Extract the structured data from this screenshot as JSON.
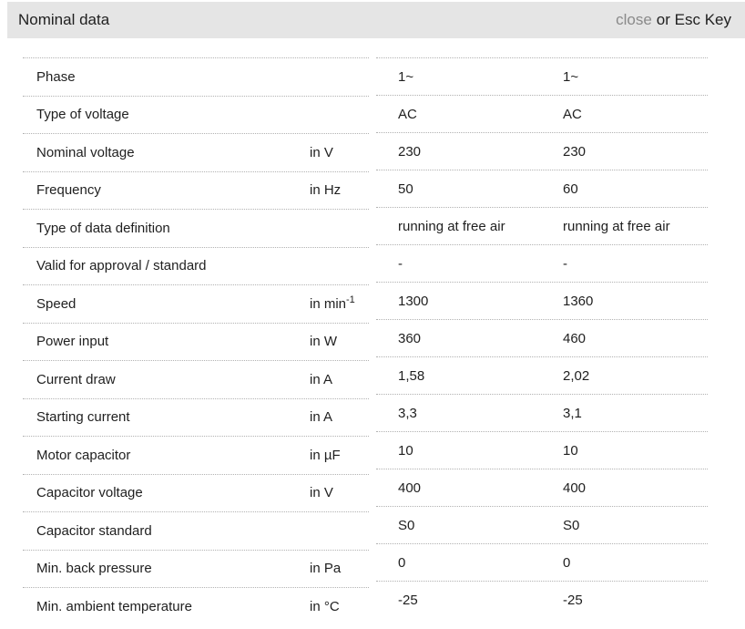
{
  "header": {
    "title": "Nominal data",
    "close_label": "close",
    "close_suffix": "or Esc Key"
  },
  "colors": {
    "header_bg": "#e5e5e5",
    "text": "#1f1f1f",
    "muted": "#8a8a8a",
    "border": "#b2b2b2"
  },
  "table": {
    "rows": [
      {
        "label": "Phase",
        "unit": "",
        "values": [
          "1~",
          "1~"
        ]
      },
      {
        "label": "Type of voltage",
        "unit": "",
        "values": [
          "AC",
          "AC"
        ]
      },
      {
        "label": "Nominal voltage",
        "unit": "in V",
        "values": [
          "230",
          "230"
        ]
      },
      {
        "label": "Frequency",
        "unit": "in Hz",
        "values": [
          "50",
          "60"
        ]
      },
      {
        "label": "Type of data definition",
        "unit": "",
        "values": [
          "running at free air",
          "running at free air"
        ]
      },
      {
        "label": "Valid for approval / standard",
        "unit": "",
        "values": [
          "-",
          "-"
        ]
      },
      {
        "label": "Speed",
        "unit": "in min",
        "unit_sup": "-1",
        "values": [
          "1300",
          "1360"
        ]
      },
      {
        "label": "Power input",
        "unit": "in W",
        "values": [
          "360",
          "460"
        ]
      },
      {
        "label": "Current draw",
        "unit": "in A",
        "values": [
          "1,58",
          "2,02"
        ]
      },
      {
        "label": "Starting current",
        "unit": "in A",
        "values": [
          "3,3",
          "3,1"
        ]
      },
      {
        "label": "Motor capacitor",
        "unit": "in µF",
        "values": [
          "10",
          "10"
        ]
      },
      {
        "label": "Capacitor voltage",
        "unit": "in V",
        "values": [
          "400",
          "400"
        ]
      },
      {
        "label": "Capacitor standard",
        "unit": "",
        "values": [
          "S0",
          "S0"
        ]
      },
      {
        "label": "Min. back pressure",
        "unit": "in Pa",
        "values": [
          "0",
          "0"
        ]
      },
      {
        "label": "Min. ambient temperature",
        "unit": "in °C",
        "values": [
          "-25",
          "-25"
        ]
      }
    ]
  }
}
